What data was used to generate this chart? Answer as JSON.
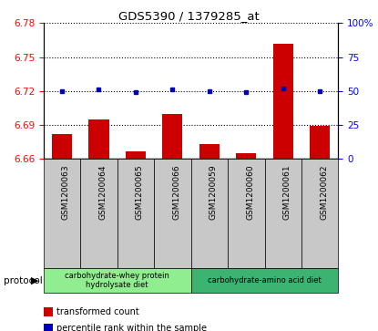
{
  "title": "GDS5390 / 1379285_at",
  "samples": [
    "GSM1200063",
    "GSM1200064",
    "GSM1200065",
    "GSM1200066",
    "GSM1200059",
    "GSM1200060",
    "GSM1200061",
    "GSM1200062"
  ],
  "red_values": [
    6.682,
    6.695,
    6.667,
    6.7,
    6.673,
    6.665,
    6.762,
    6.689
  ],
  "blue_values": [
    50,
    51,
    49,
    51,
    50,
    49,
    52,
    50
  ],
  "ylim_left": [
    6.66,
    6.78
  ],
  "ylim_right": [
    0,
    100
  ],
  "yticks_left": [
    6.66,
    6.69,
    6.72,
    6.75,
    6.78
  ],
  "yticks_right": [
    0,
    25,
    50,
    75,
    100
  ],
  "protocol_groups": [
    {
      "label": "carbohydrate-whey protein\nhydrolysate diet",
      "start": 0,
      "end": 4,
      "color": "#90EE90"
    },
    {
      "label": "carbohydrate-amino acid diet",
      "start": 4,
      "end": 8,
      "color": "#3CB371"
    }
  ],
  "bar_color": "#CC0000",
  "dot_color": "#0000BB",
  "bar_base": 6.66,
  "plot_bg": "#FFFFFF",
  "gray_bg": "#C8C8C8",
  "legend_items": [
    {
      "color": "#CC0000",
      "label": "transformed count"
    },
    {
      "color": "#0000BB",
      "label": "percentile rank within the sample"
    }
  ],
  "left_axis_color": "red",
  "right_axis_color": "blue",
  "dotted_yticks": [
    6.69,
    6.72,
    6.75,
    6.78
  ]
}
